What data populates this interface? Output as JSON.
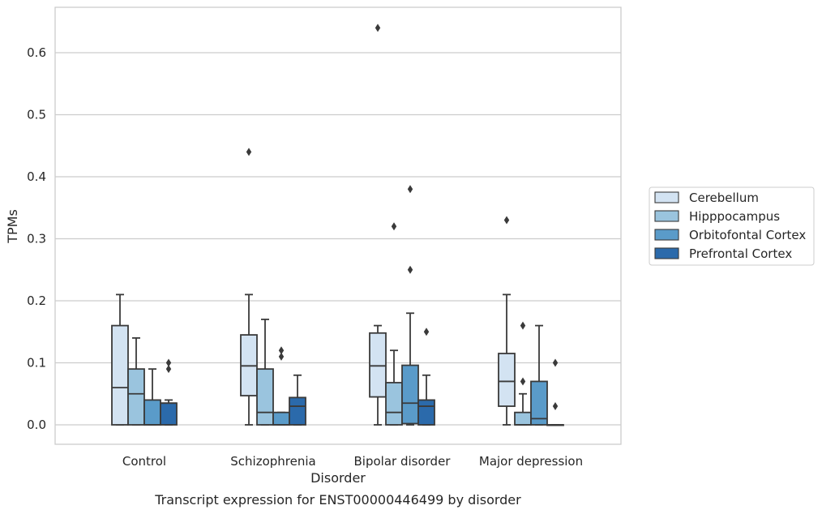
{
  "chart_data": {
    "type": "box",
    "title": "",
    "caption": "Transcript expression for ENST00000446499 by disorder",
    "xlabel": "Disorder",
    "ylabel": "TPMs",
    "ylim": [
      -0.03,
      0.68
    ],
    "yticks": [
      "0.0",
      "0.1",
      "0.2",
      "0.3",
      "0.4",
      "0.5",
      "0.6"
    ],
    "grid": "horizontal",
    "legend_position": "right",
    "categories": [
      "Control",
      "Schizophrenia",
      "Bipolar disorder",
      "Major depression"
    ],
    "series": [
      {
        "name": "Cerebellum",
        "color": "#d3e3f2",
        "boxes": [
          {
            "whislo": 0.0,
            "q1": 0.0,
            "med": 0.06,
            "q3": 0.16,
            "whishi": 0.21,
            "fliers": []
          },
          {
            "whislo": 0.0,
            "q1": 0.047,
            "med": 0.095,
            "q3": 0.145,
            "whishi": 0.21,
            "fliers": [
              0.44
            ]
          },
          {
            "whislo": 0.0,
            "q1": 0.045,
            "med": 0.095,
            "q3": 0.148,
            "whishi": 0.16,
            "fliers": [
              0.64
            ]
          },
          {
            "whislo": 0.0,
            "q1": 0.03,
            "med": 0.07,
            "q3": 0.115,
            "whishi": 0.21,
            "fliers": [
              0.33
            ]
          }
        ]
      },
      {
        "name": "Hipppocampus",
        "color": "#9ac4de",
        "boxes": [
          {
            "whislo": 0.0,
            "q1": 0.0,
            "med": 0.05,
            "q3": 0.09,
            "whishi": 0.14,
            "fliers": []
          },
          {
            "whislo": 0.0,
            "q1": 0.0,
            "med": 0.02,
            "q3": 0.09,
            "whishi": 0.17,
            "fliers": []
          },
          {
            "whislo": 0.0,
            "q1": 0.0,
            "med": 0.02,
            "q3": 0.068,
            "whishi": 0.12,
            "fliers": [
              0.32
            ]
          },
          {
            "whislo": 0.0,
            "q1": 0.0,
            "med": 0.0,
            "q3": 0.02,
            "whishi": 0.05,
            "fliers": [
              0.07,
              0.16
            ]
          }
        ]
      },
      {
        "name": "Orbitofontal Cortex",
        "color": "#5a9bc9",
        "boxes": [
          {
            "whislo": 0.0,
            "q1": 0.0,
            "med": 0.0,
            "q3": 0.04,
            "whishi": 0.09,
            "fliers": []
          },
          {
            "whislo": 0.0,
            "q1": 0.0,
            "med": 0.0,
            "q3": 0.02,
            "whishi": 0.02,
            "fliers": [
              0.11,
              0.12
            ]
          },
          {
            "whislo": 0.0,
            "q1": 0.002,
            "med": 0.035,
            "q3": 0.096,
            "whishi": 0.18,
            "fliers": [
              0.25,
              0.38
            ]
          },
          {
            "whislo": 0.0,
            "q1": 0.0,
            "med": 0.01,
            "q3": 0.07,
            "whishi": 0.16,
            "fliers": []
          }
        ]
      },
      {
        "name": "Prefrontal Cortex",
        "color": "#2b6aab",
        "boxes": [
          {
            "whislo": 0.0,
            "q1": 0.0,
            "med": 0.035,
            "q3": 0.035,
            "whishi": 0.04,
            "fliers": [
              0.09,
              0.1
            ]
          },
          {
            "whislo": 0.0,
            "q1": 0.0,
            "med": 0.03,
            "q3": 0.044,
            "whishi": 0.08,
            "fliers": []
          },
          {
            "whislo": 0.0,
            "q1": 0.0,
            "med": 0.03,
            "q3": 0.04,
            "whishi": 0.08,
            "fliers": [
              0.15
            ]
          },
          {
            "whislo": 0.0,
            "q1": 0.0,
            "med": 0.0,
            "q3": 0.0,
            "whishi": 0.0,
            "fliers": [
              0.03,
              0.1
            ]
          }
        ]
      }
    ]
  }
}
